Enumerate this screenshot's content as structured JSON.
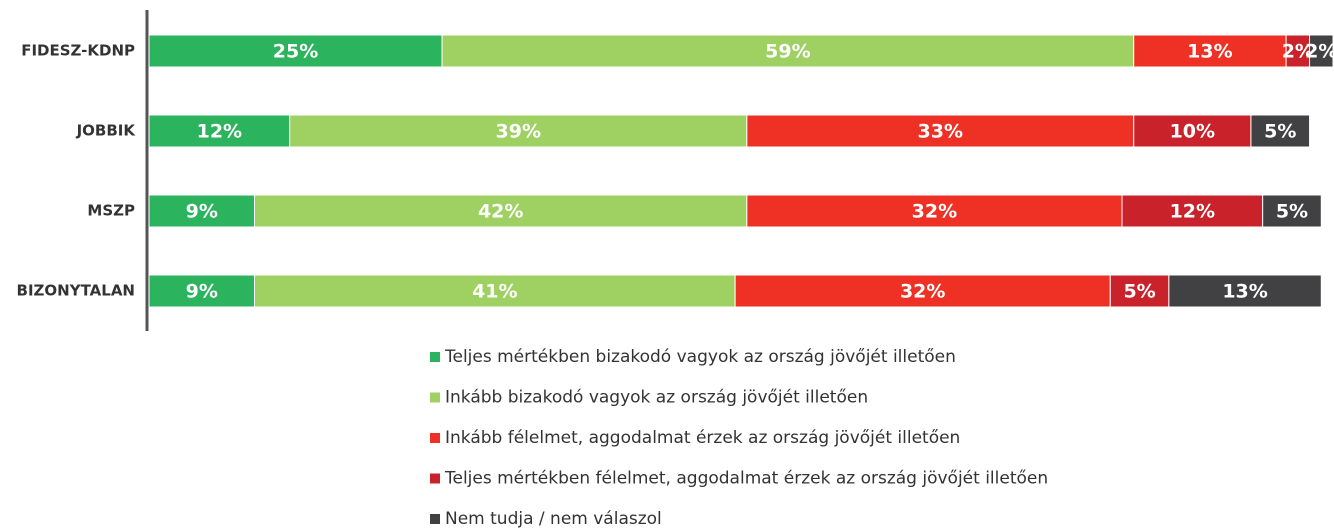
{
  "chart_data": {
    "type": "stacked-bar-horizontal",
    "categories": [
      "FIDESZ-KDNP",
      "JOBBIK",
      "MSZP",
      "BIZONYTALAN"
    ],
    "series": [
      {
        "name": "Teljes mértékben bizakodó vagyok az ország jövőjét illetően",
        "color": "#2bb35e",
        "values": [
          25,
          12,
          9,
          9
        ],
        "value_labels": [
          "25%",
          "12%",
          "9%",
          "9%"
        ]
      },
      {
        "name": "Inkább bizakodó vagyok az ország jövőjét illetően",
        "color": "#9fd062",
        "values": [
          59,
          39,
          42,
          41
        ],
        "value_labels": [
          "59%",
          "39%",
          "42%",
          "41%"
        ]
      },
      {
        "name": "Inkább félelmet, aggodalmat érzek az ország jövőjét illetően",
        "color": "#ee3124",
        "values": [
          13,
          33,
          32,
          32
        ],
        "value_labels": [
          "13%",
          "33%",
          "32%",
          "32%"
        ]
      },
      {
        "name": "Teljes mértékben félelmet, aggodalmat érzek az ország jövőjét illetően",
        "color": "#c9222b",
        "values": [
          2,
          10,
          12,
          5
        ],
        "value_labels": [
          "2%",
          "10%",
          "12%",
          "5%"
        ]
      },
      {
        "name": "Nem tudja / nem válaszol",
        "color": "#414042",
        "values": [
          2,
          5,
          5,
          13
        ],
        "value_labels": [
          "2%",
          "5%",
          "5%",
          "13%"
        ]
      }
    ]
  }
}
